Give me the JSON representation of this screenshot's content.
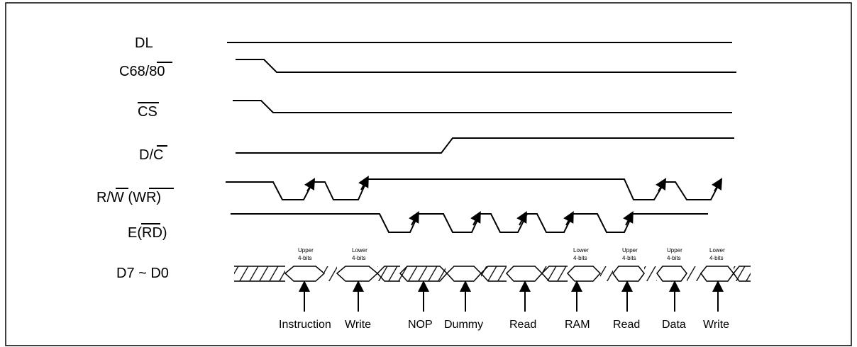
{
  "signals": {
    "dl": "DL",
    "c68": "C68/80",
    "cs": "CS",
    "dc": "D/C",
    "rw": "R/W (WR)",
    "e": "E(RD)",
    "d7": "D7 ~ D0"
  },
  "notes": [
    [
      "Upper",
      "4-bits"
    ],
    [
      "Lower",
      "4-bits"
    ],
    [
      "Lower",
      "4-bits"
    ],
    [
      "Upper",
      "4-bits"
    ],
    [
      "Upper",
      "4-bits"
    ],
    [
      "Lower",
      "4-bits"
    ]
  ],
  "labels": [
    "Instruction",
    "Write",
    "NOP",
    "Dummy",
    "Read",
    "RAM",
    "Read",
    "Data",
    "Write"
  ],
  "colors": {
    "line": "#000000",
    "background": "#ffffff"
  }
}
